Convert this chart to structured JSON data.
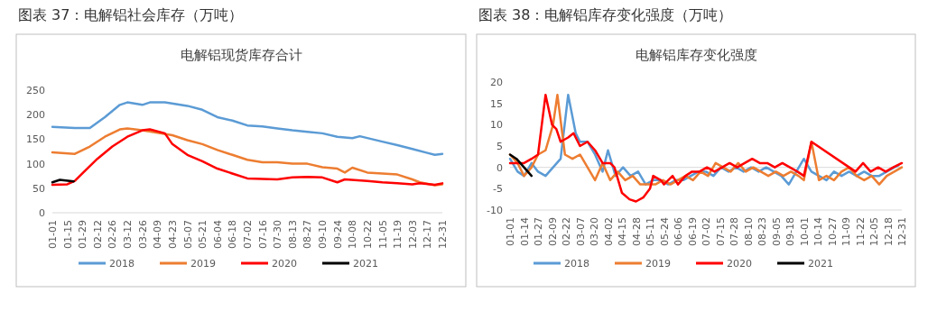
{
  "chart_data": [
    {
      "type": "line",
      "title": "图表 37：电解铝社会库存（万吨）",
      "subtitle": "电解铝现货库存合计",
      "legend": "bottom",
      "grid": false,
      "ylim": [
        0,
        250
      ],
      "yticks": [
        0,
        50,
        100,
        150,
        200,
        250
      ],
      "xlim": [
        "--01-01",
        "--12-31"
      ],
      "xticks": [
        {
          "value": "--01-01",
          "label": "01-01"
        },
        {
          "value": "--01-15",
          "label": "01-15"
        },
        {
          "value": "--01-29",
          "label": "01-29"
        },
        {
          "value": "--02-12",
          "label": "02-12"
        },
        {
          "value": "--02-26",
          "label": "02-26"
        },
        {
          "value": "--03-12",
          "label": "03-12"
        },
        {
          "value": "--03-26",
          "label": "03-26"
        },
        {
          "value": "--04-09",
          "label": "04-09"
        },
        {
          "value": "--04-23",
          "label": "04-23"
        },
        {
          "value": "--05-07",
          "label": "05-07"
        },
        {
          "value": "--05-21",
          "label": "05-21"
        },
        {
          "value": "--06-04",
          "label": "06-04"
        },
        {
          "value": "--06-18",
          "label": "06-18"
        },
        {
          "value": "--07-02",
          "label": "07-02"
        },
        {
          "value": "--07-16",
          "label": "07-16"
        },
        {
          "value": "--07-30",
          "label": "07-30"
        },
        {
          "value": "--08-13",
          "label": "08-13"
        },
        {
          "value": "--08-27",
          "label": "08-27"
        },
        {
          "value": "--09-10",
          "label": "09-10"
        },
        {
          "value": "--09-24",
          "label": "09-24"
        },
        {
          "value": "--10-08",
          "label": "10-08"
        },
        {
          "value": "--10-22",
          "label": "10-22"
        },
        {
          "value": "--11-05",
          "label": "11-05"
        },
        {
          "value": "--11-19",
          "label": "11-19"
        },
        {
          "value": "--12-03",
          "label": "12-03"
        },
        {
          "value": "--12-17",
          "label": "12-17"
        },
        {
          "value": "--12-31",
          "label": "12-31"
        }
      ],
      "series": [
        {
          "name": "2018",
          "color": "#5b9bd5",
          "x": [
            "--01-01",
            "--01-22",
            "--02-05",
            "--02-19",
            "--03-05",
            "--03-12",
            "--03-26",
            "--04-02",
            "--04-16",
            "--05-07",
            "--05-21",
            "--06-04",
            "--06-18",
            "--07-02",
            "--07-16",
            "--07-30",
            "--08-13",
            "--08-27",
            "--09-10",
            "--09-24",
            "--10-08",
            "--10-15",
            "--11-05",
            "--11-19",
            "--12-03",
            "--12-17",
            "--12-24",
            "--12-31"
          ],
          "values": [
            175,
            173,
            173,
            195,
            220,
            225,
            220,
            225,
            225,
            218,
            210,
            195,
            188,
            178,
            176,
            172,
            168,
            165,
            162,
            155,
            152,
            156,
            145,
            138,
            130,
            122,
            118,
            120
          ]
        },
        {
          "name": "2019",
          "color": "#ed7d31",
          "x": [
            "--01-01",
            "--01-22",
            "--02-05",
            "--02-19",
            "--03-05",
            "--03-12",
            "--03-26",
            "--04-09",
            "--04-23",
            "--05-07",
            "--05-21",
            "--06-04",
            "--06-18",
            "--07-02",
            "--07-16",
            "--07-30",
            "--08-13",
            "--08-27",
            "--09-10",
            "--09-24",
            "--10-01",
            "--10-08",
            "--10-22",
            "--11-05",
            "--11-19",
            "--12-03",
            "--12-10",
            "--12-24",
            "--12-31"
          ],
          "values": [
            123,
            120,
            135,
            155,
            170,
            172,
            168,
            163,
            158,
            148,
            140,
            128,
            118,
            108,
            103,
            103,
            100,
            100,
            93,
            90,
            82,
            92,
            82,
            80,
            78,
            68,
            62,
            56,
            58
          ]
        },
        {
          "name": "2020",
          "color": "#ff0000",
          "x": [
            "--01-01",
            "--01-15",
            "--01-22",
            "--01-29",
            "--02-12",
            "--02-26",
            "--03-12",
            "--03-26",
            "--04-02",
            "--04-16",
            "--04-23",
            "--05-07",
            "--05-21",
            "--06-04",
            "--06-18",
            "--07-02",
            "--07-30",
            "--08-13",
            "--08-27",
            "--09-10",
            "--09-24",
            "--10-01",
            "--10-22",
            "--11-05",
            "--11-19",
            "--12-03",
            "--12-10",
            "--12-24",
            "--12-31"
          ],
          "values": [
            57,
            58,
            65,
            80,
            110,
            135,
            155,
            168,
            170,
            162,
            140,
            118,
            105,
            90,
            80,
            70,
            68,
            72,
            73,
            72,
            62,
            68,
            65,
            62,
            60,
            58,
            60,
            57,
            60
          ]
        },
        {
          "name": "2021",
          "color": "#000000",
          "x": [
            "--01-01",
            "--01-08",
            "--01-21"
          ],
          "values": [
            62,
            67,
            64
          ]
        }
      ]
    },
    {
      "type": "line",
      "title": "图表 38：电解铝库存变化强度（万吨）",
      "subtitle": "电解铝库存变化强度",
      "legend": "bottom",
      "grid": false,
      "ylim": [
        -10,
        20
      ],
      "yticks": [
        -10,
        -5,
        0,
        5,
        10,
        15,
        20
      ],
      "ref_lines": [
        {
          "axis": "y",
          "value": 0,
          "color": "#d9d9d9"
        }
      ],
      "xlim": [
        "--01-01",
        "--12-31"
      ],
      "xticks": [
        {
          "value": "--01-01",
          "label": "01-01"
        },
        {
          "value": "--01-14",
          "label": "01-14"
        },
        {
          "value": "--01-27",
          "label": "01-27"
        },
        {
          "value": "--02-09",
          "label": "02-09"
        },
        {
          "value": "--02-22",
          "label": "02-22"
        },
        {
          "value": "--03-07",
          "label": "03-07"
        },
        {
          "value": "--03-20",
          "label": "03-20"
        },
        {
          "value": "--04-02",
          "label": "04-02"
        },
        {
          "value": "--04-15",
          "label": "04-15"
        },
        {
          "value": "--04-28",
          "label": "04-28"
        },
        {
          "value": "--05-11",
          "label": "05-11"
        },
        {
          "value": "--05-24",
          "label": "05-24"
        },
        {
          "value": "--06-06",
          "label": "06-06"
        },
        {
          "value": "--06-19",
          "label": "06-19"
        },
        {
          "value": "--07-02",
          "label": "07-02"
        },
        {
          "value": "--07-15",
          "label": "07-15"
        },
        {
          "value": "--07-28",
          "label": "07-28"
        },
        {
          "value": "--08-10",
          "label": "08-10"
        },
        {
          "value": "--08-23",
          "label": "08-23"
        },
        {
          "value": "--09-05",
          "label": "09-05"
        },
        {
          "value": "--09-18",
          "label": "09-18"
        },
        {
          "value": "--10-01",
          "label": "10-01"
        },
        {
          "value": "--10-14",
          "label": "10-14"
        },
        {
          "value": "--10-27",
          "label": "10-27"
        },
        {
          "value": "--11-09",
          "label": "11-09"
        },
        {
          "value": "--11-22",
          "label": "11-22"
        },
        {
          "value": "--12-05",
          "label": "12-05"
        },
        {
          "value": "--12-18",
          "label": "12-18"
        },
        {
          "value": "--12-31",
          "label": "12-31"
        }
      ],
      "series": [
        {
          "name": "2018",
          "color": "#5b9bd5",
          "x": [
            "--01-01",
            "--01-08",
            "--01-14",
            "--01-21",
            "--01-27",
            "--02-03",
            "--02-10",
            "--02-17",
            "--02-24",
            "--03-03",
            "--03-07",
            "--03-14",
            "--03-21",
            "--03-28",
            "--04-02",
            "--04-09",
            "--04-16",
            "--04-23",
            "--04-30",
            "--05-07",
            "--05-14",
            "--05-21",
            "--05-28",
            "--06-04",
            "--06-11",
            "--06-18",
            "--06-25",
            "--07-02",
            "--07-09",
            "--07-16",
            "--07-23",
            "--07-30",
            "--08-06",
            "--08-13",
            "--08-20",
            "--08-27",
            "--09-03",
            "--09-10",
            "--09-17",
            "--09-24",
            "--10-01",
            "--10-08",
            "--10-15",
            "--10-22",
            "--10-29",
            "--11-05",
            "--11-12",
            "--11-19",
            "--11-26",
            "--12-03",
            "--12-10",
            "--12-17",
            "--12-24",
            "--12-28"
          ],
          "values": [
            2,
            -1,
            -2,
            1,
            -1,
            -2,
            0,
            2,
            17,
            8,
            6,
            6,
            3,
            -1,
            4,
            -2,
            0,
            -2,
            -1,
            -4,
            -3,
            -3,
            -4,
            -3,
            -3,
            -2,
            -1,
            -1,
            -2,
            0,
            -1,
            0,
            -1,
            0,
            -1,
            0,
            -1,
            -2,
            -4,
            -1,
            2,
            -1,
            -2,
            -3,
            -1,
            -2,
            -1,
            -2,
            -1,
            -2,
            -2,
            -1,
            0,
            0.5
          ]
        },
        {
          "name": "2019",
          "color": "#ed7d31",
          "x": [
            "--01-01",
            "--01-08",
            "--01-14",
            "--01-21",
            "--01-27",
            "--02-03",
            "--02-10",
            "--02-14",
            "--02-21",
            "--02-28",
            "--03-07",
            "--03-14",
            "--03-21",
            "--03-28",
            "--04-04",
            "--04-11",
            "--04-18",
            "--04-25",
            "--05-02",
            "--05-09",
            "--05-16",
            "--05-23",
            "--05-30",
            "--06-06",
            "--06-13",
            "--06-20",
            "--06-27",
            "--07-04",
            "--07-11",
            "--07-18",
            "--07-25",
            "--08-01",
            "--08-08",
            "--08-15",
            "--08-22",
            "--08-29",
            "--09-05",
            "--09-12",
            "--09-19",
            "--09-26",
            "--10-01",
            "--10-08",
            "--10-15",
            "--10-22",
            "--10-29",
            "--11-05",
            "--11-12",
            "--11-19",
            "--11-26",
            "--12-03",
            "--12-10",
            "--12-17",
            "--12-24",
            "--12-31"
          ],
          "values": [
            3,
            1,
            -2,
            0,
            3,
            4,
            10,
            17,
            3,
            2,
            3,
            0,
            -3,
            1,
            -3,
            -1,
            -3,
            -2,
            -4,
            -4,
            -4,
            -3,
            -4,
            -3,
            -2,
            -3,
            -1,
            -2,
            1,
            0,
            -1,
            1,
            -1,
            0,
            -1,
            -2,
            -1,
            -2,
            -1,
            -2,
            -3,
            6,
            -3,
            -2,
            -3,
            -1,
            0,
            -2,
            -3,
            -2,
            -4,
            -2,
            -1,
            0
          ]
        },
        {
          "name": "2020",
          "color": "#ff0000",
          "x": [
            "--01-01",
            "--01-14",
            "--01-21",
            "--01-27",
            "--02-03",
            "--02-09",
            "--02-13",
            "--02-17",
            "--02-24",
            "--03-01",
            "--03-07",
            "--03-14",
            "--03-21",
            "--03-28",
            "--04-04",
            "--04-08",
            "--04-15",
            "--04-22",
            "--04-28",
            "--05-05",
            "--05-11",
            "--05-14",
            "--05-21",
            "--05-24",
            "--06-01",
            "--06-06",
            "--06-13",
            "--06-19",
            "--06-26",
            "--07-03",
            "--07-10",
            "--07-17",
            "--07-24",
            "--07-31",
            "--08-07",
            "--08-14",
            "--08-21",
            "--08-28",
            "--09-04",
            "--09-11",
            "--09-18",
            "--09-25",
            "--10-01",
            "--10-08",
            "--11-18",
            "--11-25",
            "--12-02",
            "--12-09",
            "--12-16",
            "--12-23",
            "--12-31"
          ],
          "values": [
            1,
            1,
            2,
            3,
            17,
            10,
            9,
            6,
            7,
            8,
            5,
            6,
            4,
            1,
            1,
            0,
            -6,
            -7.5,
            -8,
            -7,
            -5,
            -2,
            -3,
            -4,
            -2,
            -4,
            -2,
            -1,
            -1,
            0,
            -1,
            0,
            1,
            0,
            1,
            2,
            1,
            1,
            0,
            1,
            0,
            -1,
            -2,
            6,
            -1,
            1,
            -1,
            0,
            -1,
            0,
            1
          ]
        },
        {
          "name": "2021",
          "color": "#000000",
          "x": [
            "--01-01",
            "--01-07",
            "--01-14",
            "--01-21"
          ],
          "values": [
            3,
            2,
            0,
            -2
          ]
        }
      ]
    }
  ]
}
